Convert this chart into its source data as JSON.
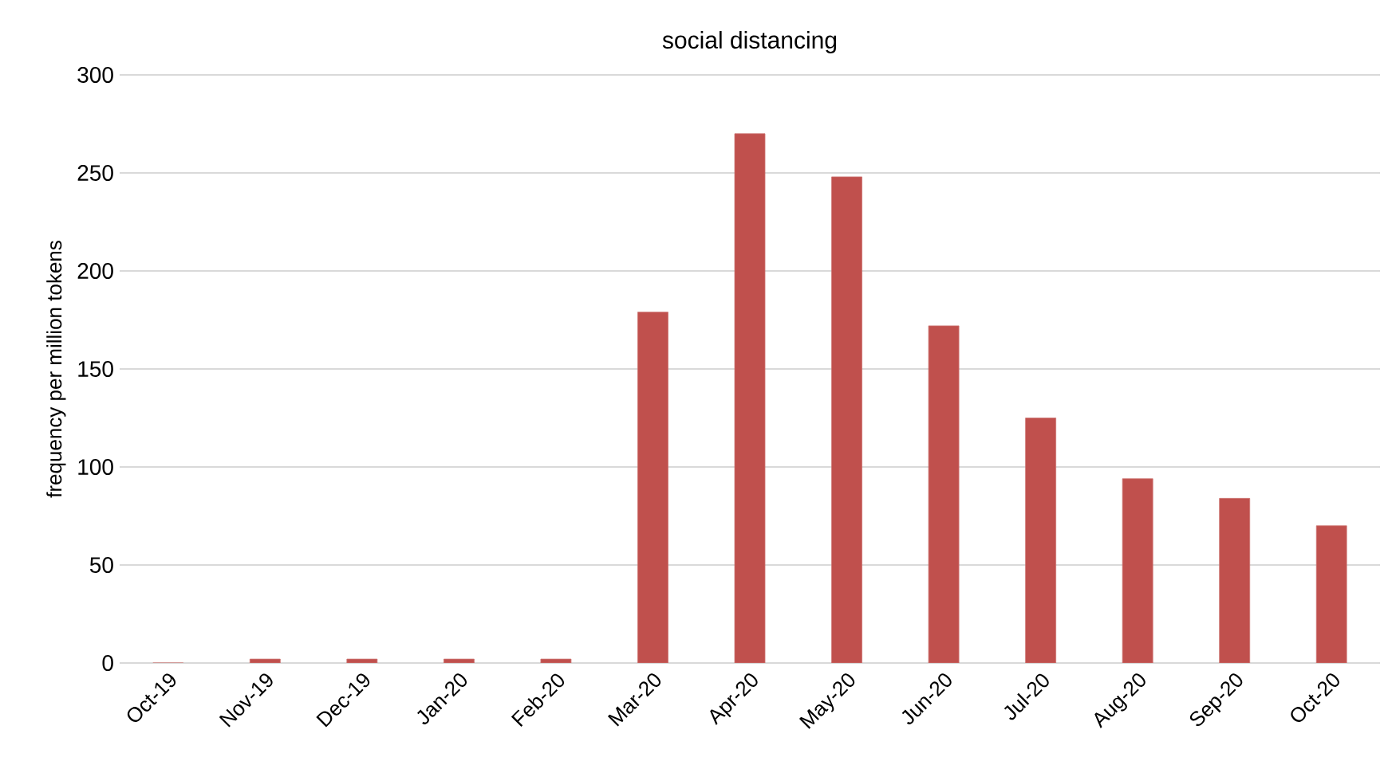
{
  "chart_data": {
    "type": "bar",
    "title": "social distancing",
    "ylabel": "frequency per million tokens",
    "categories": [
      "Oct-19",
      "Nov-19",
      "Dec-19",
      "Jan-20",
      "Feb-20",
      "Mar-20",
      "Apr-20",
      "May-20",
      "Jun-20",
      "Jul-20",
      "Aug-20",
      "Sep-20",
      "Oct-20"
    ],
    "values": [
      0,
      2,
      2,
      2,
      2,
      179,
      270,
      248,
      172,
      125,
      94,
      84,
      70
    ],
    "color": "#c0504d",
    "ylim": [
      0,
      300
    ],
    "yticks": [
      0,
      50,
      100,
      150,
      200,
      250,
      300
    ],
    "grid": "y"
  }
}
